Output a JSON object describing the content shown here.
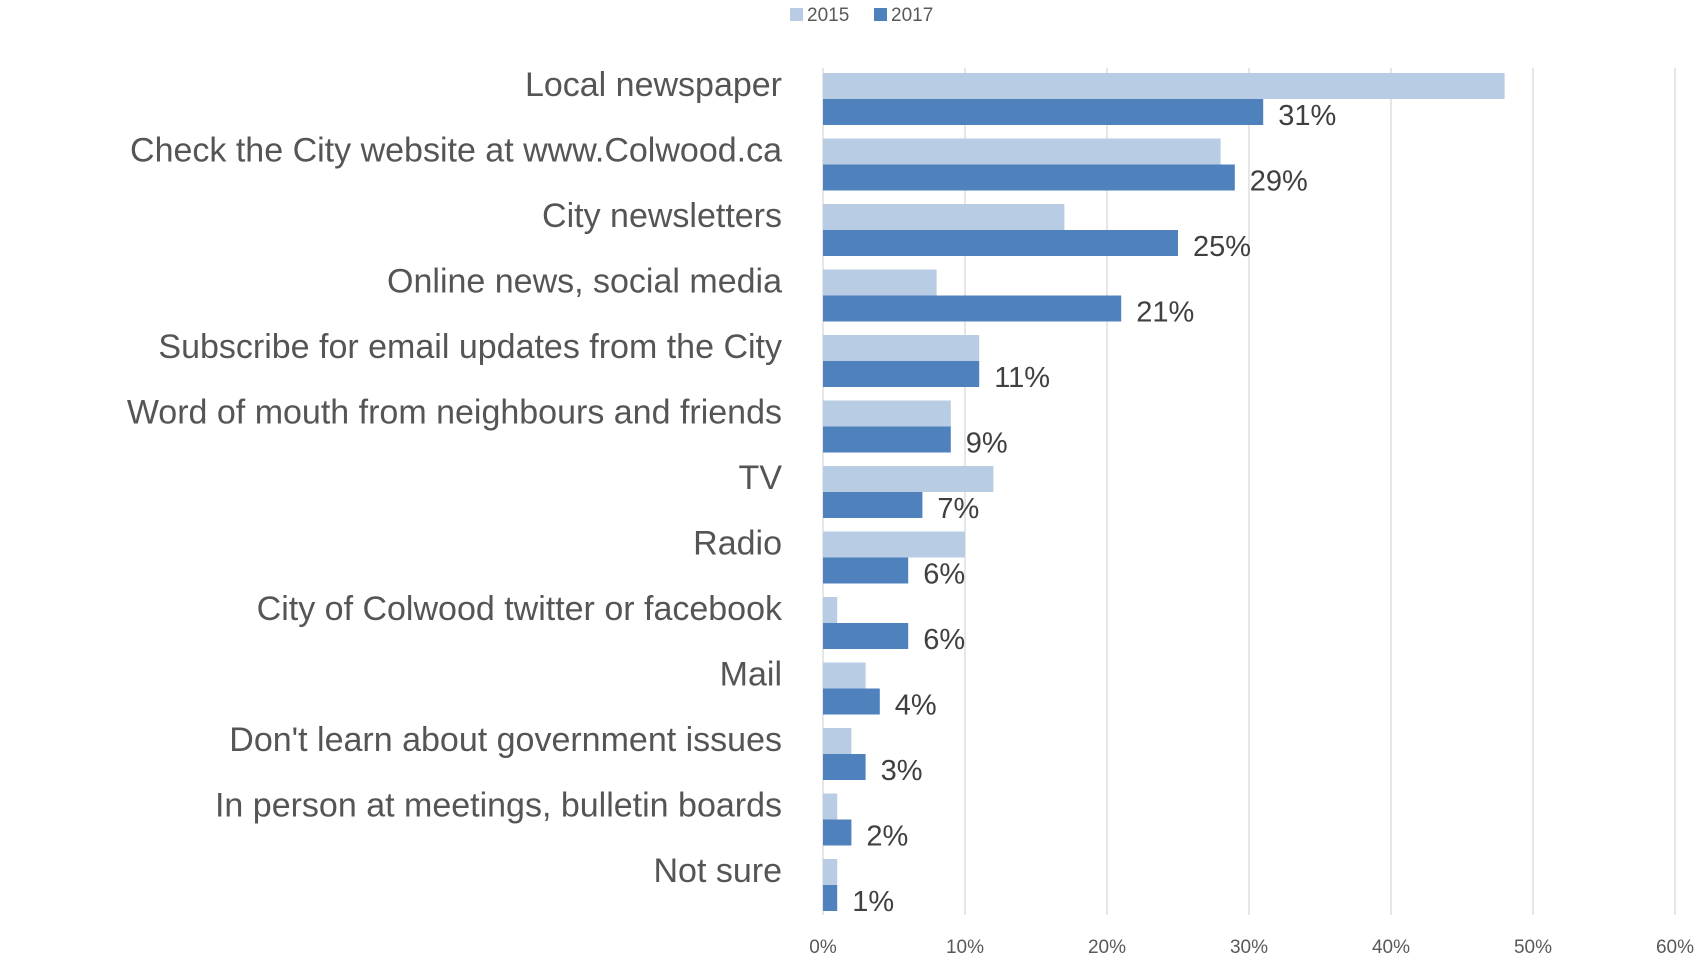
{
  "chart_data": {
    "type": "bar",
    "orientation": "horizontal",
    "categories": [
      "Local newspaper",
      "Check the City website at www.Colwood.ca",
      "City newsletters",
      "Online news, social media",
      "Subscribe for email updates from the City",
      "Word of mouth from neighbours and friends",
      "TV",
      "Radio",
      "City of Colwood twitter or facebook",
      "Mail",
      "Don't learn about government issues",
      "In person at meetings, bulletin boards",
      "Not sure"
    ],
    "series": [
      {
        "name": "2015",
        "color": "#b8cce4",
        "values": [
          48,
          28,
          17,
          8,
          11,
          9,
          12,
          10,
          1,
          3,
          2,
          1,
          1
        ]
      },
      {
        "name": "2017",
        "color": "#4f81bd",
        "values": [
          31,
          29,
          25,
          21,
          11,
          9,
          7,
          6,
          6,
          4,
          3,
          2,
          1
        ],
        "data_labels": [
          "31%",
          "29%",
          "25%",
          "21%",
          "11%",
          "9%",
          "7%",
          "6%",
          "6%",
          "4%",
          "3%",
          "2%",
          "1%"
        ]
      }
    ],
    "xlim": [
      0,
      60
    ],
    "xticks": [
      0,
      10,
      20,
      30,
      40,
      50,
      60
    ],
    "xtick_labels": [
      "0%",
      "10%",
      "20%",
      "30%",
      "40%",
      "50%",
      "60%"
    ],
    "grid": true,
    "legend_position": "top"
  }
}
